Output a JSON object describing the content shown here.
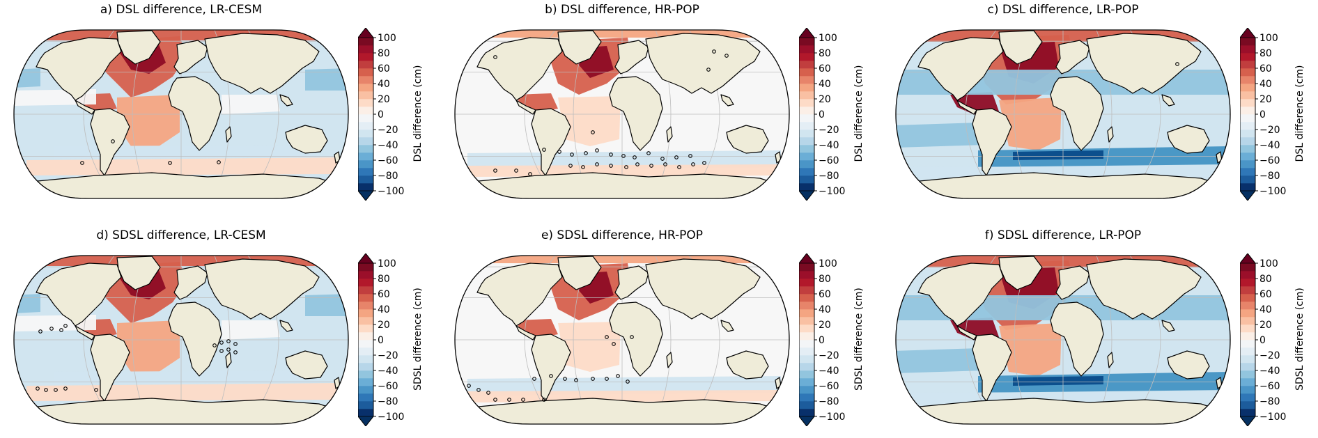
{
  "figure": {
    "panels": [
      {
        "id": "a",
        "title": "a) DSL difference, LR-CESM",
        "cbar_label": "DSL difference (cm)",
        "style": "cesm",
        "row": 0,
        "col": 0
      },
      {
        "id": "b",
        "title": "b) DSL difference, HR-POP",
        "cbar_label": "DSL difference (cm)",
        "style": "hr",
        "row": 0,
        "col": 1
      },
      {
        "id": "c",
        "title": "c) DSL difference, LR-POP",
        "cbar_label": "DSL difference (cm)",
        "style": "lrpop",
        "row": 0,
        "col": 2
      },
      {
        "id": "d",
        "title": "d) SDSL difference, LR-CESM",
        "cbar_label": "SDSL difference (cm)",
        "style": "cesm",
        "row": 1,
        "col": 0
      },
      {
        "id": "e",
        "title": "e) SDSL difference, HR-POP",
        "cbar_label": "SDSL difference (cm)",
        "style": "hr",
        "row": 1,
        "col": 1
      },
      {
        "id": "f",
        "title": "f) SDSL difference, LR-POP",
        "cbar_label": "SDSL difference (cm)",
        "style": "lrpop",
        "row": 1,
        "col": 2
      }
    ],
    "colorbar": {
      "ticks": [
        "100",
        "80",
        "60",
        "40",
        "20",
        "0",
        "−20",
        "−40",
        "−60",
        "−80",
        "−100"
      ],
      "levels": [
        -100,
        -90,
        -80,
        -70,
        -60,
        -50,
        -40,
        -30,
        -20,
        -10,
        0,
        10,
        20,
        30,
        40,
        50,
        60,
        70,
        80,
        90,
        100
      ],
      "colormap": "RdBu_r",
      "extend": "both"
    },
    "colors": {
      "land": "#efecd9",
      "deep_red": "#8e0c25",
      "red": "#d6604d",
      "light_red": "#f4a582",
      "pale_red": "#fddbc7",
      "white": "#f7f7f7",
      "pale_blue": "#d1e5f0",
      "light_blue": "#92c5de",
      "blue": "#4393c3",
      "deep_blue": "#084b8a"
    }
  }
}
